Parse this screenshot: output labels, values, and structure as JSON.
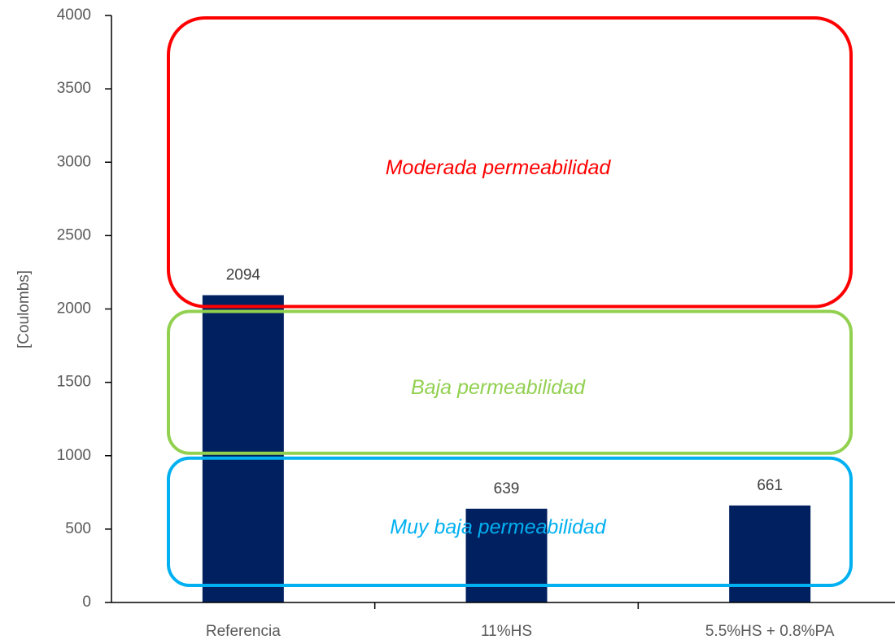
{
  "chart_data": {
    "type": "bar",
    "ylabel": "[Coulombs]",
    "categories": [
      "Referencia",
      "11%HS",
      "5.5%HS + 0.8%PA"
    ],
    "values": [
      2094,
      639,
      661
    ],
    "color": "#002060",
    "ylim": [
      0,
      4000
    ],
    "yticks": [
      0,
      500,
      1000,
      1500,
      2000,
      2500,
      3000,
      3500,
      4000
    ],
    "grid": false,
    "annotations": [
      {
        "text": "Moderada permeabilidad",
        "color": "#ff0000",
        "ylim": [
          2000,
          4000
        ]
      },
      {
        "text": "Baja permeabilidad",
        "color": "#92d050",
        "ylim": [
          1000,
          2000
        ]
      },
      {
        "text": "Muy baja permeabilidad",
        "color": "#00b0f0",
        "ylim": [
          100,
          1000
        ]
      }
    ]
  }
}
